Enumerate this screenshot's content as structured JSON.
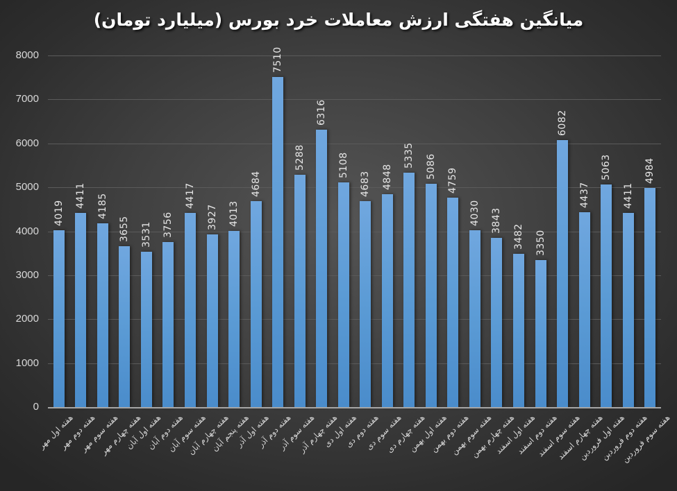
{
  "chart_data": {
    "type": "bar",
    "title": "میانگین هفتگی ارزش معاملات خرد بورس (میلیارد تومان)",
    "xlabel": "",
    "ylabel": "",
    "ylim": [
      0,
      8000
    ],
    "yticks": [
      "0",
      "1000",
      "2000",
      "3000",
      "4000",
      "5000",
      "6000",
      "7000",
      "8000"
    ],
    "grid": true,
    "legend": null,
    "bar_color": "#5b9bd5",
    "background": "#3a3a3a",
    "categories": [
      "هفته اول مهر",
      "هفته دوم مهر",
      "هفته سوم مهر",
      "هفته چهارم مهر",
      "هفته اول آبان",
      "هفته دوم آبان",
      "هفته سوم آبان",
      "هفته چهارم آبان",
      "هفته پنجم آبان",
      "هفته اول آذر",
      "هفته دوم آذر",
      "هفته سوم آذر",
      "هفته چهارم آذر",
      "هفته اول دی",
      "هفته دوم دی",
      "هفته سوم دی",
      "هفته چهارم دی",
      "هفته اول بهمن",
      "هفته دوم بهمن",
      "هفته سوم بهمن",
      "هفته چهارم بهمن",
      "هفته اول اسفند",
      "هفته دوم اسفند",
      "هفته سوم اسفند",
      "هفته چهارم اسفند",
      "هفته اول فروردین",
      "هفته دوم فروردین",
      "هفته سوم فروردین"
    ],
    "values": [
      4019,
      4411,
      4185,
      3655,
      3531,
      3756,
      4417,
      3927,
      4013,
      4684,
      7510,
      5288,
      6316,
      5108,
      4683,
      4848,
      5335,
      5086,
      4759,
      4030,
      3843,
      3482,
      3350,
      6082,
      4437,
      5063,
      4411,
      4984
    ],
    "data_labels": [
      "4019",
      "4411",
      "4185",
      "3655",
      "3531",
      "3756",
      "4417",
      "3927",
      "4013",
      "4684",
      "7510",
      "5288",
      "6316",
      "5108",
      "4683",
      "4848",
      "5335",
      "5086",
      "4759",
      "4030",
      "3843",
      "3482",
      "3350",
      "6082",
      "4437",
      "5063",
      "4411",
      "4984"
    ]
  }
}
